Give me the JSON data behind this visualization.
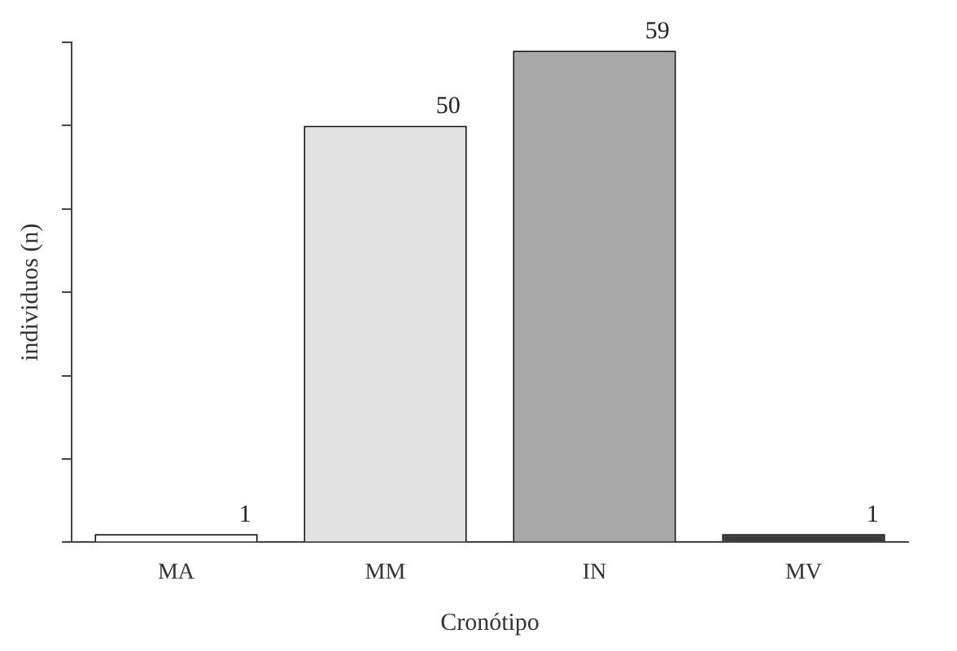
{
  "chart_data": {
    "type": "bar",
    "xlabel": "Cronótipo",
    "ylabel": "individuos (n)",
    "categories": [
      "MA",
      "MM",
      "IN",
      "MV"
    ],
    "values": [
      1,
      50,
      59,
      1
    ],
    "colors": [
      "#ffffff",
      "#e2e2e2",
      "#a8a8a8",
      "#3a3a3a"
    ],
    "tick_labels": "x",
    "grid": false,
    "legend": false,
    "data_labels": true
  }
}
